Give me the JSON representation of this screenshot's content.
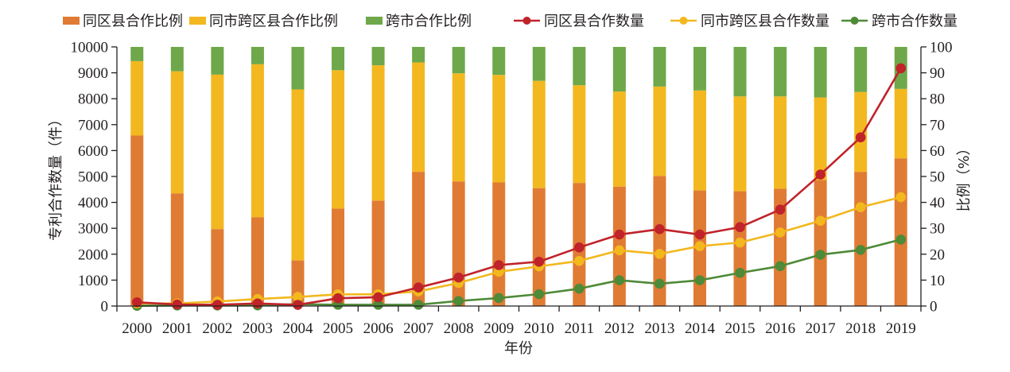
{
  "chart_data": {
    "type": "bar+line",
    "title": "",
    "xlabel": "年份",
    "ylabel_left": "专利合作数量（件）",
    "ylabel_right": "比例（%）",
    "ylim_left": [
      0,
      10000
    ],
    "ylim_right": [
      0,
      100
    ],
    "yticks_left": [
      "0",
      "1000",
      "2000",
      "3000",
      "4000",
      "5000",
      "6000",
      "7000",
      "8000",
      "9000",
      "10000"
    ],
    "yticks_right": [
      "0",
      "10",
      "20",
      "30",
      "40",
      "50",
      "60",
      "70",
      "80",
      "90",
      "100"
    ],
    "grid": false,
    "legend_position": "top",
    "categories": [
      "2000",
      "2001",
      "2002",
      "2003",
      "2004",
      "2005",
      "2006",
      "2007",
      "2008",
      "2009",
      "2010",
      "2011",
      "2012",
      "2013",
      "2014",
      "2015",
      "2016",
      "2017",
      "2018",
      "2019"
    ],
    "bar_series": [
      {
        "name": "同区县合作比例",
        "axis": "right",
        "color": "#E07B34",
        "values": [
          65.8,
          43.5,
          29.7,
          34.3,
          17.6,
          37.6,
          40.7,
          51.8,
          48.1,
          47.7,
          45.5,
          47.5,
          46.1,
          50.2,
          44.6,
          44.3,
          45.3,
          48.6,
          51.8,
          57.0
        ]
      },
      {
        "name": "同市跨区县合作比例",
        "axis": "right",
        "color": "#F3B81F",
        "values": [
          28.7,
          47.1,
          59.6,
          59.0,
          66.0,
          53.4,
          52.2,
          42.2,
          41.7,
          41.5,
          41.4,
          37.7,
          36.7,
          34.5,
          38.6,
          36.6,
          35.6,
          31.9,
          30.8,
          26.8
        ]
      },
      {
        "name": "跨市合作比例",
        "axis": "right",
        "color": "#6EA84A",
        "values": [
          5.5,
          9.4,
          10.7,
          6.7,
          16.4,
          9.0,
          7.1,
          6.0,
          10.2,
          10.8,
          13.1,
          14.8,
          17.2,
          15.3,
          16.8,
          19.1,
          19.1,
          19.5,
          17.4,
          16.2
        ]
      }
    ],
    "line_series": [
      {
        "name": "同区县合作数量",
        "axis": "left",
        "color": "#C0232A",
        "values": [
          145,
          60,
          50,
          100,
          45,
          300,
          340,
          715,
          1100,
          1580,
          1710,
          2260,
          2760,
          2965,
          2760,
          3045,
          3720,
          5075,
          6510,
          9175
        ]
      },
      {
        "name": "同市跨区县合作数量",
        "axis": "left",
        "color": "#F2B81E",
        "values": [
          100,
          100,
          175,
          270,
          350,
          450,
          450,
          565,
          890,
          1320,
          1530,
          1740,
          2150,
          2010,
          2310,
          2450,
          2840,
          3290,
          3815,
          4200
        ]
      },
      {
        "name": "跨市合作数量",
        "axis": "left",
        "color": "#4E8A38",
        "values": [
          10,
          20,
          20,
          25,
          70,
          50,
          50,
          50,
          195,
          310,
          460,
          670,
          995,
          860,
          995,
          1280,
          1540,
          1980,
          2165,
          2565
        ]
      }
    ]
  }
}
